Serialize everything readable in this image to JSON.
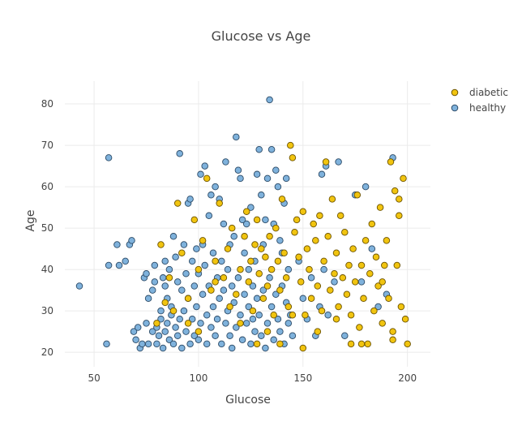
{
  "chart_data": {
    "type": "scatter",
    "title": "Glucose vs Age",
    "xlabel": "Glucose",
    "ylabel": "Age",
    "xlim": [
      36,
      211
    ],
    "ylim": [
      16.5,
      85.5
    ],
    "x_ticks": [
      50,
      100,
      150,
      200
    ],
    "y_ticks": [
      20,
      30,
      40,
      50,
      60,
      70,
      80
    ],
    "grid": true,
    "legend": {
      "position": "top-right"
    },
    "series": [
      {
        "name": "healthy",
        "color": "#7fb2dc",
        "edge_color": "#2c4a66",
        "points": [
          [
            43,
            36
          ],
          [
            56,
            22
          ],
          [
            57,
            67
          ],
          [
            57,
            41
          ],
          [
            61,
            46
          ],
          [
            62,
            41
          ],
          [
            65,
            42
          ],
          [
            67,
            46
          ],
          [
            68,
            47
          ],
          [
            69,
            25
          ],
          [
            70,
            23
          ],
          [
            71,
            26
          ],
          [
            72,
            21
          ],
          [
            73,
            22
          ],
          [
            74,
            38
          ],
          [
            75,
            27
          ],
          [
            75,
            39
          ],
          [
            76,
            33
          ],
          [
            76,
            22
          ],
          [
            78,
            35
          ],
          [
            78,
            25
          ],
          [
            79,
            37
          ],
          [
            79,
            41
          ],
          [
            80,
            22
          ],
          [
            80,
            26
          ],
          [
            81,
            24
          ],
          [
            82,
            30
          ],
          [
            82,
            28
          ],
          [
            83,
            38
          ],
          [
            83,
            21
          ],
          [
            84,
            42
          ],
          [
            84,
            36
          ],
          [
            84,
            25
          ],
          [
            85,
            33
          ],
          [
            85,
            27
          ],
          [
            86,
            23
          ],
          [
            86,
            40
          ],
          [
            87,
            31
          ],
          [
            87,
            29
          ],
          [
            88,
            48
          ],
          [
            88,
            22
          ],
          [
            89,
            43
          ],
          [
            89,
            26
          ],
          [
            90,
            37
          ],
          [
            90,
            24
          ],
          [
            91,
            68
          ],
          [
            91,
            28
          ],
          [
            92,
            35
          ],
          [
            92,
            21
          ],
          [
            93,
            46
          ],
          [
            93,
            30
          ],
          [
            94,
            39
          ],
          [
            94,
            25
          ],
          [
            95,
            56
          ],
          [
            95,
            33
          ],
          [
            96,
            57
          ],
          [
            96,
            22
          ],
          [
            97,
            42
          ],
          [
            97,
            28
          ],
          [
            98,
            36
          ],
          [
            98,
            24
          ],
          [
            99,
            45
          ],
          [
            99,
            31
          ],
          [
            100,
            39
          ],
          [
            100,
            23
          ],
          [
            101,
            63
          ],
          [
            101,
            27
          ],
          [
            102,
            46
          ],
          [
            102,
            34
          ],
          [
            103,
            65
          ],
          [
            103,
            41
          ],
          [
            104,
            29
          ],
          [
            104,
            22
          ],
          [
            105,
            53
          ],
          [
            105,
            36
          ],
          [
            106,
            58
          ],
          [
            106,
            26
          ],
          [
            107,
            44
          ],
          [
            107,
            31
          ],
          [
            108,
            60
          ],
          [
            108,
            24
          ],
          [
            109,
            38
          ],
          [
            109,
            28
          ],
          [
            110,
            57
          ],
          [
            110,
            33
          ],
          [
            111,
            42
          ],
          [
            111,
            22
          ],
          [
            112,
            51
          ],
          [
            112,
            35
          ],
          [
            113,
            66
          ],
          [
            113,
            27
          ],
          [
            114,
            40
          ],
          [
            114,
            30
          ],
          [
            115,
            46
          ],
          [
            115,
            24
          ],
          [
            116,
            36
          ],
          [
            116,
            21
          ],
          [
            117,
            48
          ],
          [
            117,
            32
          ],
          [
            118,
            72
          ],
          [
            118,
            26
          ],
          [
            119,
            64
          ],
          [
            119,
            38
          ],
          [
            120,
            62
          ],
          [
            120,
            29
          ],
          [
            121,
            52
          ],
          [
            121,
            23
          ],
          [
            122,
            44
          ],
          [
            122,
            34
          ],
          [
            123,
            51
          ],
          [
            123,
            27
          ],
          [
            124,
            40
          ],
          [
            124,
            31
          ],
          [
            125,
            55
          ],
          [
            125,
            22
          ],
          [
            126,
            36
          ],
          [
            126,
            28
          ],
          [
            127,
            42
          ],
          [
            127,
            25
          ],
          [
            128,
            63
          ],
          [
            128,
            33
          ],
          [
            129,
            69
          ],
          [
            129,
            29
          ],
          [
            130,
            58
          ],
          [
            130,
            24
          ],
          [
            131,
            46
          ],
          [
            131,
            35
          ],
          [
            132,
            52
          ],
          [
            132,
            21
          ],
          [
            133,
            62
          ],
          [
            133,
            27
          ],
          [
            134,
            81
          ],
          [
            134,
            38
          ],
          [
            135,
            69
          ],
          [
            135,
            31
          ],
          [
            136,
            51
          ],
          [
            136,
            23
          ],
          [
            137,
            64
          ],
          [
            137,
            34
          ],
          [
            138,
            60
          ],
          [
            138,
            28
          ],
          [
            139,
            47
          ],
          [
            139,
            25
          ],
          [
            140,
            44
          ],
          [
            140,
            36
          ],
          [
            141,
            56
          ],
          [
            141,
            22
          ],
          [
            142,
            62
          ],
          [
            142,
            32
          ],
          [
            143,
            40
          ],
          [
            143,
            27
          ],
          [
            144,
            29
          ],
          [
            145,
            24
          ],
          [
            148,
            42
          ],
          [
            150,
            33
          ],
          [
            152,
            28
          ],
          [
            154,
            38
          ],
          [
            156,
            24
          ],
          [
            158,
            31
          ],
          [
            159,
            63
          ],
          [
            160,
            40
          ],
          [
            161,
            65
          ],
          [
            162,
            29
          ],
          [
            165,
            37
          ],
          [
            167,
            66
          ],
          [
            170,
            24
          ],
          [
            175,
            58
          ],
          [
            178,
            37
          ],
          [
            180,
            60
          ],
          [
            183,
            45
          ],
          [
            186,
            31
          ],
          [
            190,
            34
          ],
          [
            193,
            67
          ]
        ]
      },
      {
        "name": "diabetic",
        "color": "#f1c40f",
        "edge_color": "#6b5200",
        "points": [
          [
            80,
            27
          ],
          [
            82,
            46
          ],
          [
            84,
            32
          ],
          [
            86,
            38
          ],
          [
            88,
            30
          ],
          [
            90,
            56
          ],
          [
            92,
            44
          ],
          [
            95,
            33
          ],
          [
            98,
            52
          ],
          [
            100,
            40
          ],
          [
            102,
            47
          ],
          [
            104,
            62
          ],
          [
            106,
            35
          ],
          [
            108,
            42
          ],
          [
            110,
            56
          ],
          [
            112,
            38
          ],
          [
            114,
            45
          ],
          [
            116,
            50
          ],
          [
            118,
            34
          ],
          [
            120,
            40
          ],
          [
            122,
            48
          ],
          [
            123,
            54
          ],
          [
            124,
            37
          ],
          [
            125,
            42
          ],
          [
            126,
            30
          ],
          [
            127,
            46
          ],
          [
            128,
            52
          ],
          [
            129,
            39
          ],
          [
            130,
            45
          ],
          [
            131,
            33
          ],
          [
            132,
            43
          ],
          [
            133,
            36
          ],
          [
            134,
            48
          ],
          [
            135,
            40
          ],
          [
            136,
            29
          ],
          [
            137,
            50
          ],
          [
            138,
            42
          ],
          [
            139,
            35
          ],
          [
            140,
            57
          ],
          [
            141,
            44
          ],
          [
            142,
            38
          ],
          [
            143,
            31
          ],
          [
            144,
            70
          ],
          [
            145,
            67
          ],
          [
            146,
            49
          ],
          [
            147,
            52
          ],
          [
            148,
            43
          ],
          [
            149,
            37
          ],
          [
            150,
            54
          ],
          [
            151,
            29
          ],
          [
            152,
            45
          ],
          [
            153,
            40
          ],
          [
            154,
            33
          ],
          [
            155,
            51
          ],
          [
            156,
            47
          ],
          [
            157,
            36
          ],
          [
            158,
            53
          ],
          [
            159,
            30
          ],
          [
            160,
            42
          ],
          [
            161,
            66
          ],
          [
            162,
            48
          ],
          [
            163,
            35
          ],
          [
            164,
            57
          ],
          [
            165,
            39
          ],
          [
            166,
            44
          ],
          [
            167,
            31
          ],
          [
            168,
            53
          ],
          [
            169,
            38
          ],
          [
            170,
            49
          ],
          [
            171,
            34
          ],
          [
            172,
            41
          ],
          [
            173,
            29
          ],
          [
            174,
            45
          ],
          [
            175,
            37
          ],
          [
            176,
            58
          ],
          [
            177,
            26
          ],
          [
            178,
            41
          ],
          [
            179,
            33
          ],
          [
            180,
            47
          ],
          [
            181,
            22
          ],
          [
            182,
            39
          ],
          [
            183,
            51
          ],
          [
            184,
            30
          ],
          [
            185,
            43
          ],
          [
            186,
            36
          ],
          [
            187,
            55
          ],
          [
            188,
            27
          ],
          [
            189,
            41
          ],
          [
            190,
            47
          ],
          [
            191,
            33
          ],
          [
            192,
            66
          ],
          [
            193,
            25
          ],
          [
            194,
            59
          ],
          [
            195,
            41
          ],
          [
            196,
            53
          ],
          [
            197,
            31
          ],
          [
            198,
            62
          ],
          [
            199,
            28
          ],
          [
            200,
            22
          ],
          [
            196,
            57
          ],
          [
            193,
            23
          ],
          [
            188,
            37
          ],
          [
            178,
            22
          ],
          [
            173,
            22
          ],
          [
            166,
            28
          ],
          [
            157,
            25
          ],
          [
            150,
            21
          ],
          [
            145,
            29
          ],
          [
            139,
            22
          ],
          [
            133,
            25
          ],
          [
            128,
            22
          ],
          [
            120,
            27
          ],
          [
            115,
            31
          ],
          [
            108,
            37
          ],
          [
            100,
            25
          ],
          [
            95,
            27
          ]
        ]
      }
    ]
  }
}
